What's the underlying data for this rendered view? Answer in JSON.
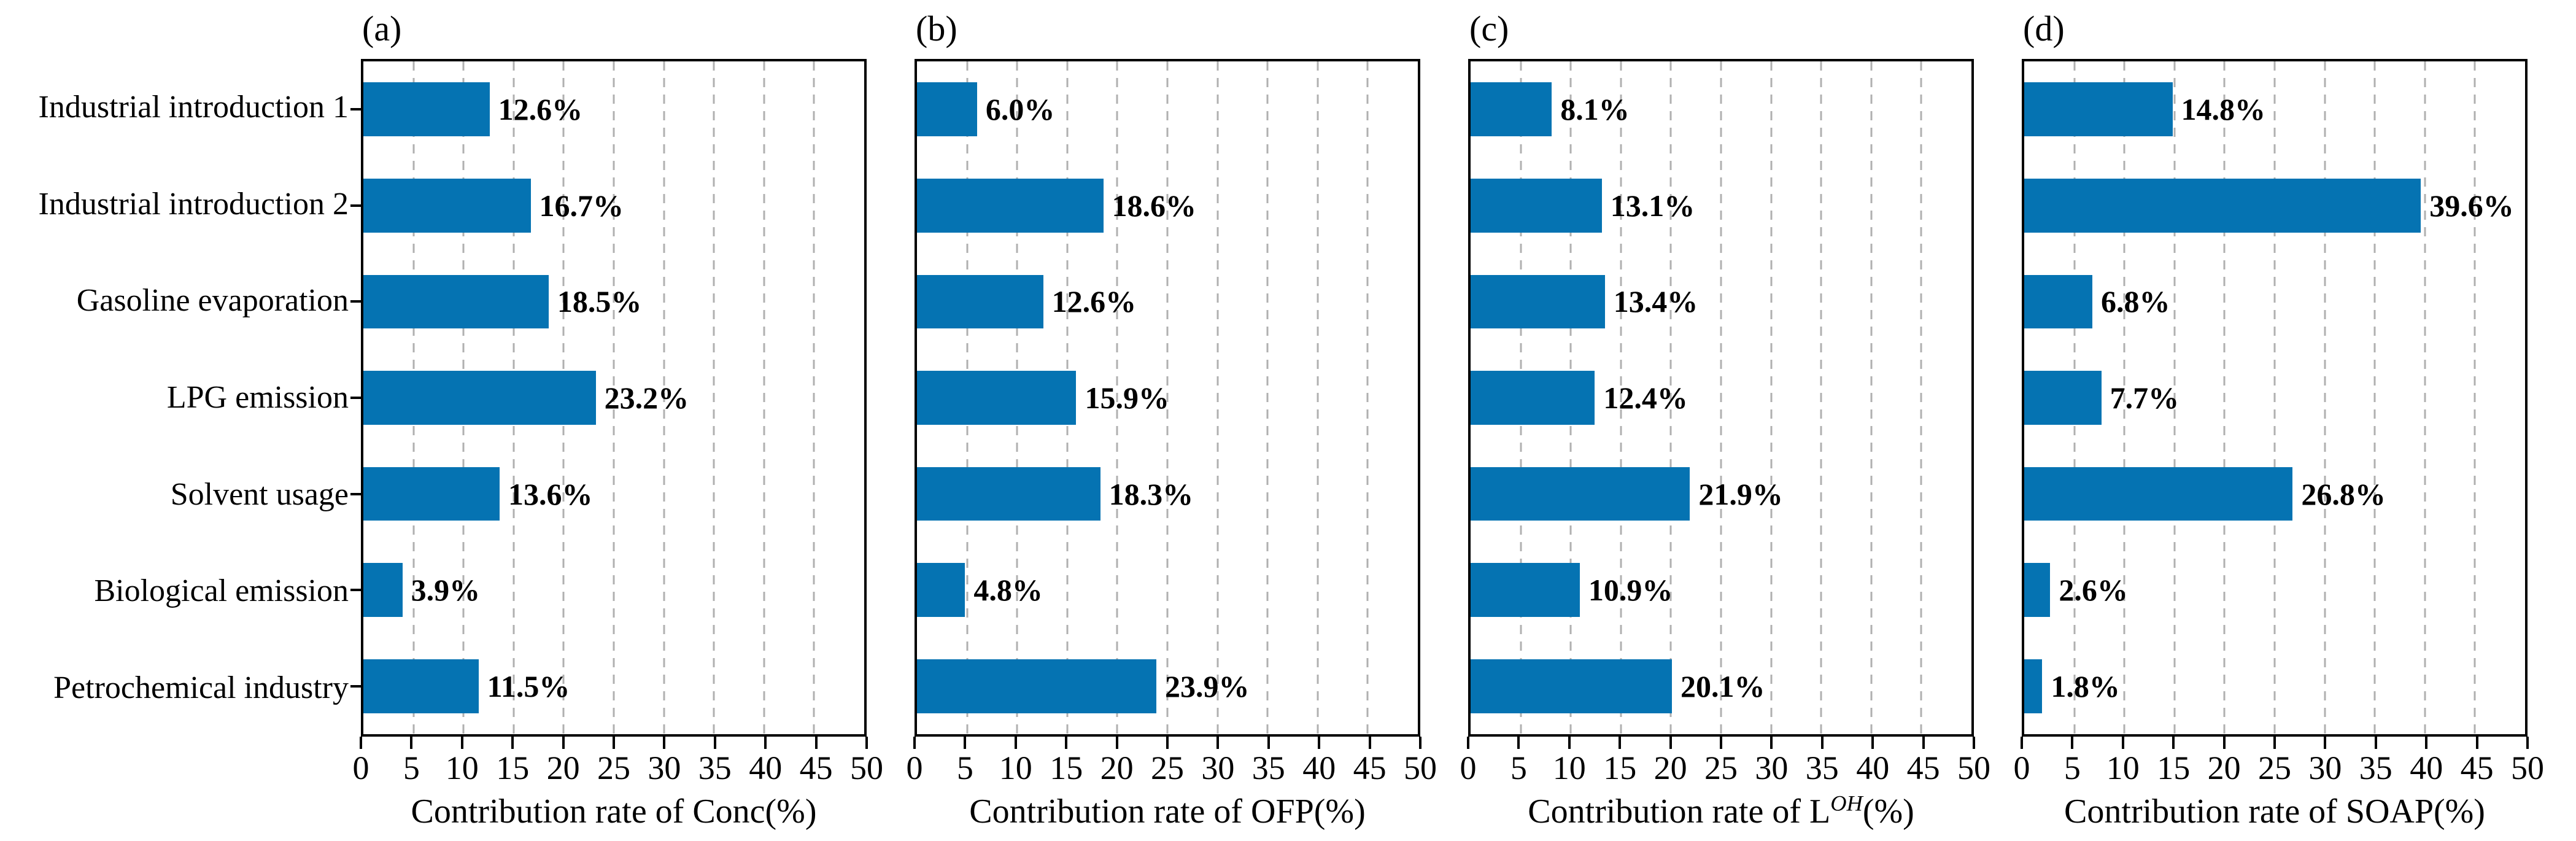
{
  "figure": {
    "background": "#ffffff",
    "bar_color": "#0573b2",
    "grid_color": "#b0b0b0",
    "axis_color": "#000000"
  },
  "categories": [
    "Industrial introduction 1",
    "Industrial introduction 2",
    "Gasoline evaporation",
    "LPG emission",
    "Solvent usage",
    "Biological emission",
    "Petrochemical industry"
  ],
  "chart_data": [
    {
      "type": "bar",
      "orientation": "horizontal",
      "panel": "(a)",
      "categories": [
        "Industrial introduction 1",
        "Industrial introduction 2",
        "Gasoline evaporation",
        "LPG emission",
        "Solvent usage",
        "Biological emission",
        "Petrochemical industry"
      ],
      "values": [
        12.6,
        16.7,
        18.5,
        23.2,
        13.6,
        3.9,
        11.5
      ],
      "labels": [
        "12.6%",
        "16.7%",
        "18.5%",
        "23.2%",
        "13.6%",
        "3.9%",
        "11.5%"
      ],
      "xlabel": "Contribution rate of Conc(%)",
      "xlabel_parts": [
        {
          "t": "Contribution rate of Conc(%)"
        }
      ],
      "xlim": [
        0,
        50
      ],
      "xticks": [
        0,
        5,
        10,
        15,
        20,
        25,
        30,
        35,
        40,
        45,
        50
      ],
      "grid": "vertical-dashed",
      "legend": "none"
    },
    {
      "type": "bar",
      "orientation": "horizontal",
      "panel": "(b)",
      "categories": [
        "Industrial introduction 1",
        "Industrial introduction 2",
        "Gasoline evaporation",
        "LPG emission",
        "Solvent usage",
        "Biological emission",
        "Petrochemical industry"
      ],
      "values": [
        6.0,
        18.6,
        12.6,
        15.9,
        18.3,
        4.8,
        23.9
      ],
      "labels": [
        "6.0%",
        "18.6%",
        "12.6%",
        "15.9%",
        "18.3%",
        "4.8%",
        "23.9%"
      ],
      "xlabel": "Contribution rate of OFP(%)",
      "xlabel_parts": [
        {
          "t": "Contribution rate of OFP(%)"
        }
      ],
      "xlim": [
        0,
        50
      ],
      "xticks": [
        0,
        5,
        10,
        15,
        20,
        25,
        30,
        35,
        40,
        45,
        50
      ],
      "grid": "vertical-dashed",
      "legend": "none"
    },
    {
      "type": "bar",
      "orientation": "horizontal",
      "panel": "(c)",
      "categories": [
        "Industrial introduction 1",
        "Industrial introduction 2",
        "Gasoline evaporation",
        "LPG emission",
        "Solvent usage",
        "Biological emission",
        "Petrochemical industry"
      ],
      "values": [
        8.1,
        13.1,
        13.4,
        12.4,
        21.9,
        10.9,
        20.1
      ],
      "labels": [
        "8.1%",
        "13.1%",
        "13.4%",
        "12.4%",
        "21.9%",
        "10.9%",
        "20.1%"
      ],
      "xlabel": "Contribution rate of L^OH(%)",
      "xlabel_parts": [
        {
          "t": "Contribution rate of L"
        },
        {
          "t": "OH",
          "sup": true
        },
        {
          "t": "(%)"
        }
      ],
      "xlim": [
        0,
        50
      ],
      "xticks": [
        0,
        5,
        10,
        15,
        20,
        25,
        30,
        35,
        40,
        45,
        50
      ],
      "grid": "vertical-dashed",
      "legend": "none"
    },
    {
      "type": "bar",
      "orientation": "horizontal",
      "panel": "(d)",
      "categories": [
        "Industrial introduction 1",
        "Industrial introduction 2",
        "Gasoline evaporation",
        "LPG emission",
        "Solvent usage",
        "Biological emission",
        "Petrochemical industry"
      ],
      "values": [
        14.8,
        39.6,
        6.8,
        7.7,
        26.8,
        2.6,
        1.8
      ],
      "labels": [
        "14.8%",
        "39.6%",
        "6.8%",
        "7.7%",
        "26.8%",
        "2.6%",
        "1.8%"
      ],
      "xlabel": "Contribution rate of SOAP(%)",
      "xlabel_parts": [
        {
          "t": "Contribution rate of SOAP(%)"
        }
      ],
      "xlim": [
        0,
        50
      ],
      "xticks": [
        0,
        5,
        10,
        15,
        20,
        25,
        30,
        35,
        40,
        45,
        50
      ],
      "grid": "vertical-dashed",
      "legend": "none"
    }
  ]
}
